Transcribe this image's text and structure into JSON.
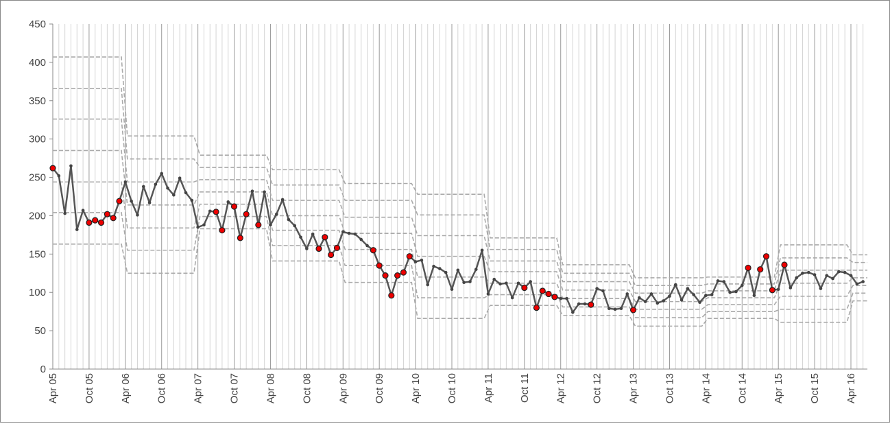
{
  "chart_data": {
    "type": "line",
    "categories": [
      "Apr 05",
      null,
      null,
      null,
      null,
      null,
      "Oct 05",
      null,
      null,
      null,
      null,
      null,
      "Apr 06",
      null,
      null,
      null,
      null,
      null,
      "Oct 06",
      null,
      null,
      null,
      null,
      null,
      "Apr 07",
      null,
      null,
      null,
      null,
      null,
      "Oct 07",
      null,
      null,
      null,
      null,
      null,
      "Apr 08",
      null,
      null,
      null,
      null,
      null,
      "Oct 08",
      null,
      null,
      null,
      null,
      null,
      "Apr 09",
      null,
      null,
      null,
      null,
      null,
      "Oct 09",
      null,
      null,
      null,
      null,
      null,
      "Apr 10",
      null,
      null,
      null,
      null,
      null,
      "Oct 10",
      null,
      null,
      null,
      null,
      null,
      "Apr 11",
      null,
      null,
      null,
      null,
      null,
      "Oct 11",
      null,
      null,
      null,
      null,
      null,
      "Apr 12",
      null,
      null,
      null,
      null,
      null,
      "Oct 12",
      null,
      null,
      null,
      null,
      null,
      "Apr 13",
      null,
      null,
      null,
      null,
      null,
      "Oct 13",
      null,
      null,
      null,
      null,
      null,
      "Apr 14",
      null,
      null,
      null,
      null,
      null,
      "Oct 14",
      null,
      null,
      null,
      null,
      null,
      "Apr 15",
      null,
      null,
      null,
      null,
      null,
      "Oct 15",
      null,
      null,
      null,
      null,
      null,
      "Apr 16",
      null,
      null
    ],
    "values": [
      262,
      252,
      203,
      265,
      182,
      207,
      191,
      194,
      191,
      202,
      197,
      219,
      244,
      219,
      201,
      238,
      217,
      241,
      255,
      236,
      227,
      249,
      230,
      220,
      185,
      188,
      206,
      205,
      181,
      218,
      212,
      171,
      202,
      232,
      188,
      231,
      188,
      202,
      221,
      195,
      187,
      172,
      157,
      176,
      157,
      172,
      149,
      158,
      179,
      177,
      176,
      169,
      161,
      155,
      135,
      122,
      96,
      122,
      126,
      147,
      140,
      142,
      110,
      134,
      131,
      126,
      104,
      129,
      113,
      114,
      130,
      155,
      98,
      117,
      111,
      112,
      93,
      112,
      106,
      114,
      80,
      102,
      98,
      94,
      92,
      92,
      74,
      85,
      85,
      84,
      105,
      102,
      79,
      78,
      79,
      98,
      77,
      93,
      88,
      98,
      86,
      89,
      95,
      110,
      90,
      105,
      97,
      87,
      96,
      97,
      115,
      114,
      100,
      101,
      109,
      132,
      96,
      130,
      147,
      103,
      104,
      136,
      106,
      119,
      125,
      126,
      123,
      105,
      122,
      118,
      127,
      126,
      122,
      111,
      114
    ],
    "marker_colors": [
      "#e00",
      "#444",
      "#444",
      "#444",
      "#444",
      "#444",
      "#e00",
      "#e00",
      "#e00",
      "#e00",
      "#e00",
      "#e00",
      "#444",
      "#444",
      "#444",
      "#444",
      "#444",
      "#444",
      "#444",
      "#444",
      "#444",
      "#444",
      "#444",
      "#444",
      "#444",
      "#444",
      "#444",
      "#e00",
      "#e00",
      "#444",
      "#e00",
      "#e00",
      "#e00",
      "#444",
      "#e00",
      "#444",
      "#444",
      "#444",
      "#444",
      "#444",
      "#444",
      "#444",
      "#444",
      "#444",
      "#e00",
      "#e00",
      "#e00",
      "#e00",
      "#444",
      "#444",
      "#444",
      "#444",
      "#444",
      "#e00",
      "#e00",
      "#e00",
      "#e00",
      "#e00",
      "#e00",
      "#e00",
      "#444",
      "#444",
      "#444",
      "#444",
      "#444",
      "#444",
      "#444",
      "#444",
      "#444",
      "#444",
      "#444",
      "#444",
      "#444",
      "#444",
      "#444",
      "#444",
      "#444",
      "#444",
      "#e00",
      "#444",
      "#e00",
      "#e00",
      "#e00",
      "#e00",
      "#444",
      "#444",
      "#444",
      "#444",
      "#444",
      "#e00",
      "#444",
      "#444",
      "#444",
      "#444",
      "#444",
      "#444",
      "#e00",
      "#444",
      "#444",
      "#444",
      "#444",
      "#444",
      "#444",
      "#444",
      "#444",
      "#444",
      "#444",
      "#444",
      "#444",
      "#444",
      "#444",
      "#444",
      "#444",
      "#444",
      "#444",
      "#e00",
      "#444",
      "#e00",
      "#e00",
      "#e00",
      "#444",
      "#e00",
      "#444",
      "#444",
      "#444",
      "#444",
      "#444",
      "#444",
      "#444",
      "#444",
      "#444",
      "#444",
      "#444",
      "#444",
      "#444"
    ],
    "line_color": "#555555",
    "limit_color": "#aaaaaa",
    "limits": [
      [
        407,
        366,
        326,
        285,
        244,
        204,
        163
      ],
      [
        304,
        274,
        244,
        214,
        184,
        155,
        125
      ],
      [
        279,
        263,
        247,
        231,
        215,
        199,
        183
      ],
      [
        260,
        240,
        220,
        200,
        181,
        161,
        141
      ],
      [
        242,
        220,
        198,
        177,
        156,
        135,
        113
      ],
      [
        228,
        201,
        174,
        147,
        120,
        93,
        66
      ],
      [
        171,
        156,
        141,
        127,
        112,
        97,
        83
      ],
      [
        136,
        125,
        114,
        103,
        92,
        81,
        70
      ],
      [
        119,
        109,
        99,
        88,
        78,
        67,
        56
      ],
      [
        120,
        111,
        102,
        93,
        84,
        75,
        66
      ],
      [
        162,
        145,
        129,
        112,
        95,
        78,
        61
      ],
      [
        149,
        139,
        129,
        119,
        109,
        99,
        89
      ]
    ],
    "ylim": [
      0,
      450
    ],
    "yticks": [
      0,
      50,
      100,
      150,
      200,
      250,
      300,
      350,
      400,
      450
    ],
    "grid": true
  }
}
